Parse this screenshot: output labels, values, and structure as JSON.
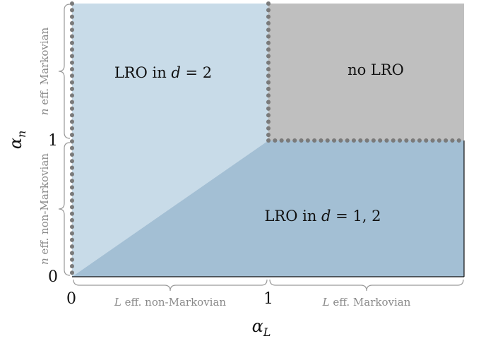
{
  "axes": {
    "x_label": "α",
    "x_label_sub": "L",
    "y_label": "α",
    "y_label_sub": "n",
    "x_ticks": [
      "0",
      "1"
    ],
    "y_ticks": [
      "0",
      "1"
    ]
  },
  "regions": {
    "lro_d2": {
      "text": "LRO in ",
      "var": "d",
      "rest": " = 2",
      "color": "#c8dbe8"
    },
    "no_lro": {
      "text": "no LRO",
      "color": "#bfbfbf"
    },
    "lro_d12": {
      "text": "LRO in ",
      "var": "d",
      "rest": " = 1, 2",
      "color": "#a3bfd4"
    }
  },
  "braces": {
    "x_left": {
      "var": "L",
      "text": " eff. non-Markovian"
    },
    "x_right": {
      "var": "L",
      "text": " eff. Markovian"
    },
    "y_bottom": {
      "var": "n",
      "text": " eff. non-Markovian"
    },
    "y_top": {
      "var": "n",
      "text": " eff. Markovian"
    }
  },
  "boundary_color": "#7a7a7a"
}
